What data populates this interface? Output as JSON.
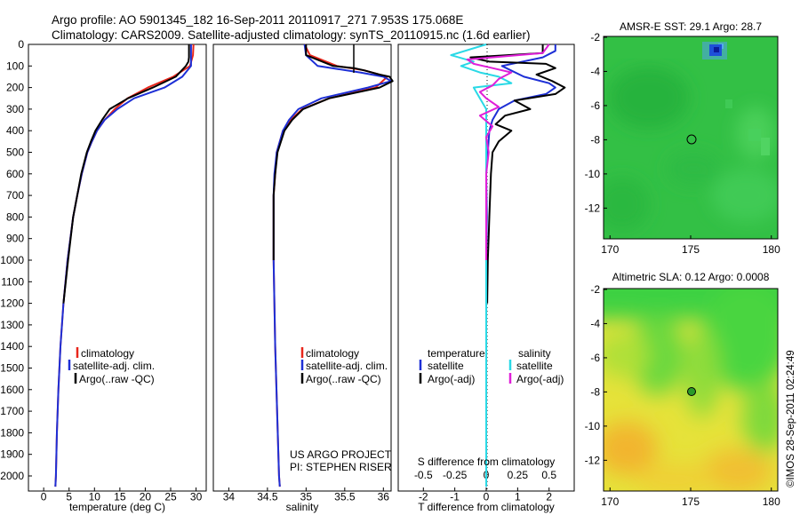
{
  "header": {
    "title": "Argo profile: AO 5901345_182 16-Sep-2011 20110917_271 7.953S 175.068E",
    "subtitle": "Climatology: CARS2009. Satellite-adjusted climatology: synTS_20110915.nc (1.6d earlier)"
  },
  "depth_ticks": [
    "0",
    "100",
    "200",
    "300",
    "400",
    "500",
    "600",
    "700",
    "800",
    "900",
    "1000",
    "1100",
    "1200",
    "1300",
    "1400",
    "1500",
    "1600",
    "1700",
    "1800",
    "1900",
    "2000"
  ],
  "colors": {
    "climatology": "#e8261b",
    "satellite": "#1d2fd6",
    "argo": "#000000",
    "sat_salinity": "#2ad9e6",
    "argo_salinity": "#e01fd8"
  },
  "chart_data": [
    {
      "type": "line",
      "name": "temperature",
      "xlabel": "temperature (deg C)",
      "xticks": [
        "0",
        "5",
        "10",
        "15",
        "20",
        "25",
        "30"
      ],
      "xlim": [
        -3,
        32
      ],
      "ylim": [
        2070,
        0
      ],
      "legend": [
        "climatology",
        "satellite-adj. clim.",
        "Argo(..raw -QC)"
      ],
      "series": [
        {
          "name": "climatology",
          "key": "climatology",
          "depth": [
            0,
            50,
            100,
            150,
            200,
            250,
            300,
            350,
            400,
            450,
            500,
            600,
            700,
            800,
            1000,
            1200,
            1400,
            1600,
            1800,
            2000,
            2050
          ],
          "values": [
            29.5,
            29.4,
            28.8,
            25.5,
            20.5,
            16.5,
            14.0,
            12.0,
            10.5,
            9.5,
            8.6,
            7.5,
            6.6,
            5.8,
            4.7,
            3.9,
            3.3,
            2.9,
            2.6,
            2.4,
            2.3
          ]
        },
        {
          "name": "satellite-adj. clim.",
          "key": "satellite",
          "depth": [
            0,
            50,
            100,
            150,
            200,
            250,
            300,
            350,
            400,
            450,
            500,
            600,
            700,
            800,
            1000,
            1200,
            1400,
            1600,
            1800,
            2000,
            2050
          ],
          "values": [
            29.0,
            29.0,
            29.0,
            27.3,
            23.8,
            17.8,
            14.5,
            12.0,
            10.5,
            9.5,
            8.6,
            7.5,
            6.6,
            5.8,
            4.7,
            3.9,
            3.3,
            2.9,
            2.6,
            2.4,
            2.3
          ]
        },
        {
          "name": "Argo(..raw -QC)",
          "key": "argo",
          "depth": [
            0,
            20,
            40,
            60,
            80,
            100,
            150,
            200,
            250,
            300,
            350,
            400,
            450,
            500,
            600,
            700,
            800,
            1000,
            1200
          ],
          "values": [
            28.6,
            28.6,
            28.6,
            28.6,
            28.5,
            28.0,
            26.0,
            21.5,
            16.6,
            13.0,
            11.5,
            10.2,
            9.3,
            8.5,
            7.4,
            6.6,
            5.8,
            4.8,
            3.9
          ]
        }
      ]
    },
    {
      "type": "line",
      "name": "salinity",
      "xlabel": "salinity",
      "xticks": [
        "34",
        "34.5",
        "35",
        "35.5",
        "36"
      ],
      "xlim": [
        33.8,
        36.1
      ],
      "ylim": [
        2070,
        0
      ],
      "legend": [
        "climatology",
        "satellite-adj. clim.",
        "Argo(..raw -QC)"
      ],
      "annotations": [
        "US ARGO PROJECT",
        "PI: STEPHEN RISER"
      ],
      "series": [
        {
          "name": "climatology",
          "key": "climatology",
          "depth": [
            0,
            50,
            100,
            120,
            150,
            200,
            250,
            300,
            350,
            400,
            500,
            600,
            700,
            1000,
            1400,
            2000,
            2050
          ],
          "values": [
            34.98,
            35.05,
            35.4,
            35.75,
            36.05,
            35.9,
            35.3,
            34.95,
            34.8,
            34.7,
            34.62,
            34.6,
            34.58,
            34.58,
            34.6,
            34.65,
            34.66
          ]
        },
        {
          "name": "satellite-adj. clim.",
          "key": "satellite",
          "depth": [
            0,
            50,
            100,
            130,
            150,
            170,
            200,
            250,
            300,
            350,
            400,
            500,
            600,
            700,
            1000,
            1400,
            2000,
            2050
          ],
          "values": [
            34.98,
            35.0,
            35.15,
            35.7,
            36.0,
            36.1,
            35.8,
            35.2,
            34.9,
            34.78,
            34.7,
            34.62,
            34.59,
            34.58,
            34.58,
            34.6,
            34.65,
            34.66
          ]
        },
        {
          "name": "Argo(..raw -QC)",
          "key": "argo",
          "depth": [
            0,
            50,
            100,
            110,
            120,
            140,
            150,
            170,
            200,
            250,
            300,
            350,
            400,
            500,
            600,
            700,
            1000
          ],
          "values": [
            35.0,
            35.0,
            35.35,
            35.62,
            35.75,
            35.95,
            36.08,
            36.12,
            35.95,
            35.3,
            34.96,
            34.82,
            34.72,
            34.63,
            34.6,
            34.58,
            34.58
          ]
        }
      ]
    },
    {
      "type": "line",
      "name": "differences",
      "xlabel": "T difference from climatology",
      "xlabel2": "S difference from climatology",
      "xticks": [
        "-2",
        "-1",
        "0",
        "1",
        "2"
      ],
      "xticks_s": [
        "-0.5",
        "-0.25",
        "0",
        "0.25",
        "0.5"
      ],
      "xlim": [
        -2.8,
        2.8
      ],
      "ylim": [
        2070,
        0
      ],
      "legend_titles": [
        "temperature",
        "salinity"
      ],
      "legend": [
        "satellite",
        "Argo(-adj)",
        "satellite",
        "Argo(-adj)"
      ],
      "series": [
        {
          "name": "temperature satellite",
          "key": "satellite",
          "depth": [
            0,
            30,
            60,
            100,
            150,
            180,
            200,
            230,
            260,
            300,
            350,
            400,
            500,
            600,
            800,
            1000,
            1500,
            2000,
            2050
          ],
          "values": [
            2.2,
            2.2,
            1.8,
            0.5,
            1.2,
            2.0,
            2.2,
            1.9,
            0.9,
            0.4,
            0.2,
            0.1,
            0.05,
            0.0,
            0.02,
            0.0,
            0.0,
            0.0,
            0.0
          ]
        },
        {
          "name": "temperature Argo(-adj)",
          "key": "argo",
          "depth": [
            0,
            40,
            60,
            80,
            90,
            110,
            140,
            170,
            200,
            230,
            260,
            300,
            330,
            370,
            400,
            450,
            500,
            600,
            800,
            1000,
            1200
          ],
          "values": [
            1.8,
            1.8,
            -0.5,
            0.1,
            1.9,
            2.2,
            1.6,
            2.1,
            2.5,
            2.2,
            0.9,
            1.4,
            0.6,
            0.3,
            0.8,
            0.4,
            0.2,
            0.15,
            0.1,
            0.05,
            0.03
          ]
        },
        {
          "name": "salinity satellite",
          "key": "sat_salinity",
          "depth": [
            0,
            50,
            80,
            100,
            130,
            150,
            180,
            200,
            250,
            300,
            400,
            500,
            700,
            1000,
            1500,
            2000,
            2050
          ],
          "values": [
            0.0,
            -0.28,
            -0.1,
            -0.2,
            -0.05,
            0.1,
            0.2,
            -0.1,
            -0.05,
            0.0,
            0.0,
            0.0,
            0.0,
            0.0,
            0.0,
            0.0,
            0.0
          ]
        },
        {
          "name": "salinity Argo(-adj)",
          "key": "argo_salinity",
          "depth": [
            0,
            40,
            70,
            90,
            110,
            130,
            160,
            190,
            220,
            250,
            290,
            330,
            380,
            430,
            500,
            600,
            800,
            1000
          ],
          "values": [
            0.5,
            0.45,
            -0.15,
            -0.1,
            0.05,
            0.2,
            0.1,
            0.05,
            -0.05,
            0.0,
            0.1,
            -0.05,
            0.05,
            0.0,
            0.02,
            0.0,
            0.0,
            0.0
          ]
        }
      ]
    }
  ],
  "maps": [
    {
      "title": "AMSR-E SST: 29.1 Argo: 28.7",
      "yticks": [
        "-2",
        "-4",
        "-6",
        "-8",
        "-10",
        "-12"
      ],
      "xticks": [
        "170",
        "175",
        "180"
      ]
    },
    {
      "title": "Altimetric SLA: 0.12 Argo: 0.0008",
      "yticks": [
        "-2",
        "-4",
        "-6",
        "-8",
        "-10",
        "-12"
      ],
      "xticks": [
        "170",
        "175",
        "180"
      ]
    }
  ],
  "footer_stamp": "©IMOS 28-Sep-2011 02:24:49"
}
